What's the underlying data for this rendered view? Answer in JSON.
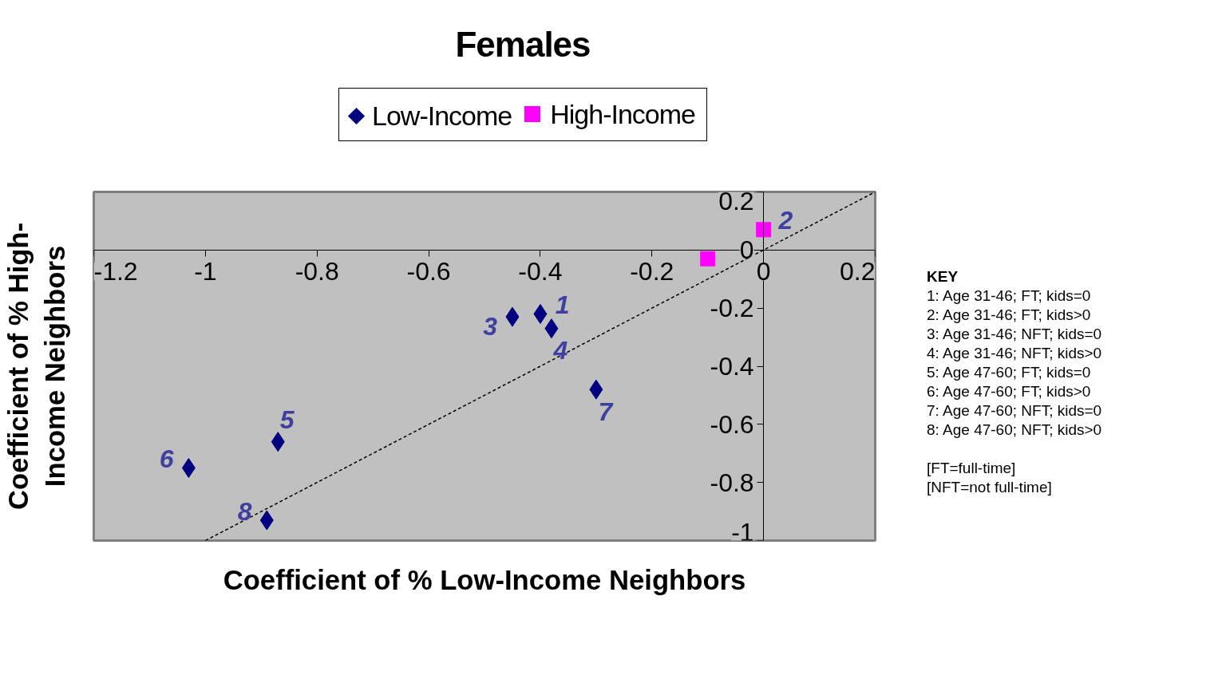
{
  "chart_data": {
    "type": "scatter",
    "title": "Females",
    "xlabel": "Coefficient of % Low-Income Neighbors",
    "ylabel": "Coefficient of % High-Income Neighbors",
    "xlim": [
      -1.2,
      0.2
    ],
    "xticks": [
      -1.2,
      -1,
      -0.8,
      -0.6,
      -0.4,
      -0.2,
      0,
      0.2
    ],
    "ylim": [
      -1,
      0.2
    ],
    "yticks": [
      -1,
      -0.8,
      -0.6,
      -0.4,
      -0.2,
      0,
      0.2
    ],
    "grid": false,
    "legend": "top",
    "series": [
      {
        "name": "Low-Income",
        "color": "#000080",
        "marker": "diamond",
        "x": [
          -0.4,
          -0.45,
          -0.38,
          -0.87,
          -1.03,
          -0.3,
          -0.89
        ],
        "values": [
          -0.22,
          -0.23,
          -0.27,
          -0.66,
          -0.75,
          -0.48,
          -0.93
        ]
      },
      {
        "name": "High-Income",
        "color": "#ff00ff",
        "marker": "square",
        "x": [
          -0.1,
          0.0
        ],
        "values": [
          -0.03,
          0.07
        ]
      },
      {
        "type": "line",
        "color": "#000000",
        "line_style": "dashed",
        "marker": "none",
        "x": [
          -1.0,
          0.2
        ],
        "values": [
          -1.0,
          0.2
        ]
      }
    ],
    "annotations": [
      {
        "text": "1",
        "x": -0.4,
        "y": -0.22
      },
      {
        "text": "2",
        "x": 0.0,
        "y": 0.07
      },
      {
        "text": "3",
        "x": -0.45,
        "y": -0.23
      },
      {
        "text": "4",
        "x": -0.38,
        "y": -0.27
      },
      {
        "text": "5",
        "x": -0.87,
        "y": -0.66
      },
      {
        "text": "6",
        "x": -1.03,
        "y": -0.75
      },
      {
        "text": "7",
        "x": -0.3,
        "y": -0.48
      },
      {
        "text": "8",
        "x": -0.89,
        "y": -0.93
      },
      "KEY",
      "1: Age 31-46; FT; kids=0",
      "2: Age 31-46; FT; kids>0",
      "3: Age 31-46; NFT; kids=0",
      "4: Age 31-46; NFT; kids>0",
      "5: Age 47-60; FT; kids=0",
      "6: Age 47-60; FT; kids>0",
      "7: Age 47-60; NFT; kids=0",
      "8: Age 47-60; NFT; kids>0",
      "[FT=full-time]",
      "[NFT=not full-time]"
    ]
  }
}
